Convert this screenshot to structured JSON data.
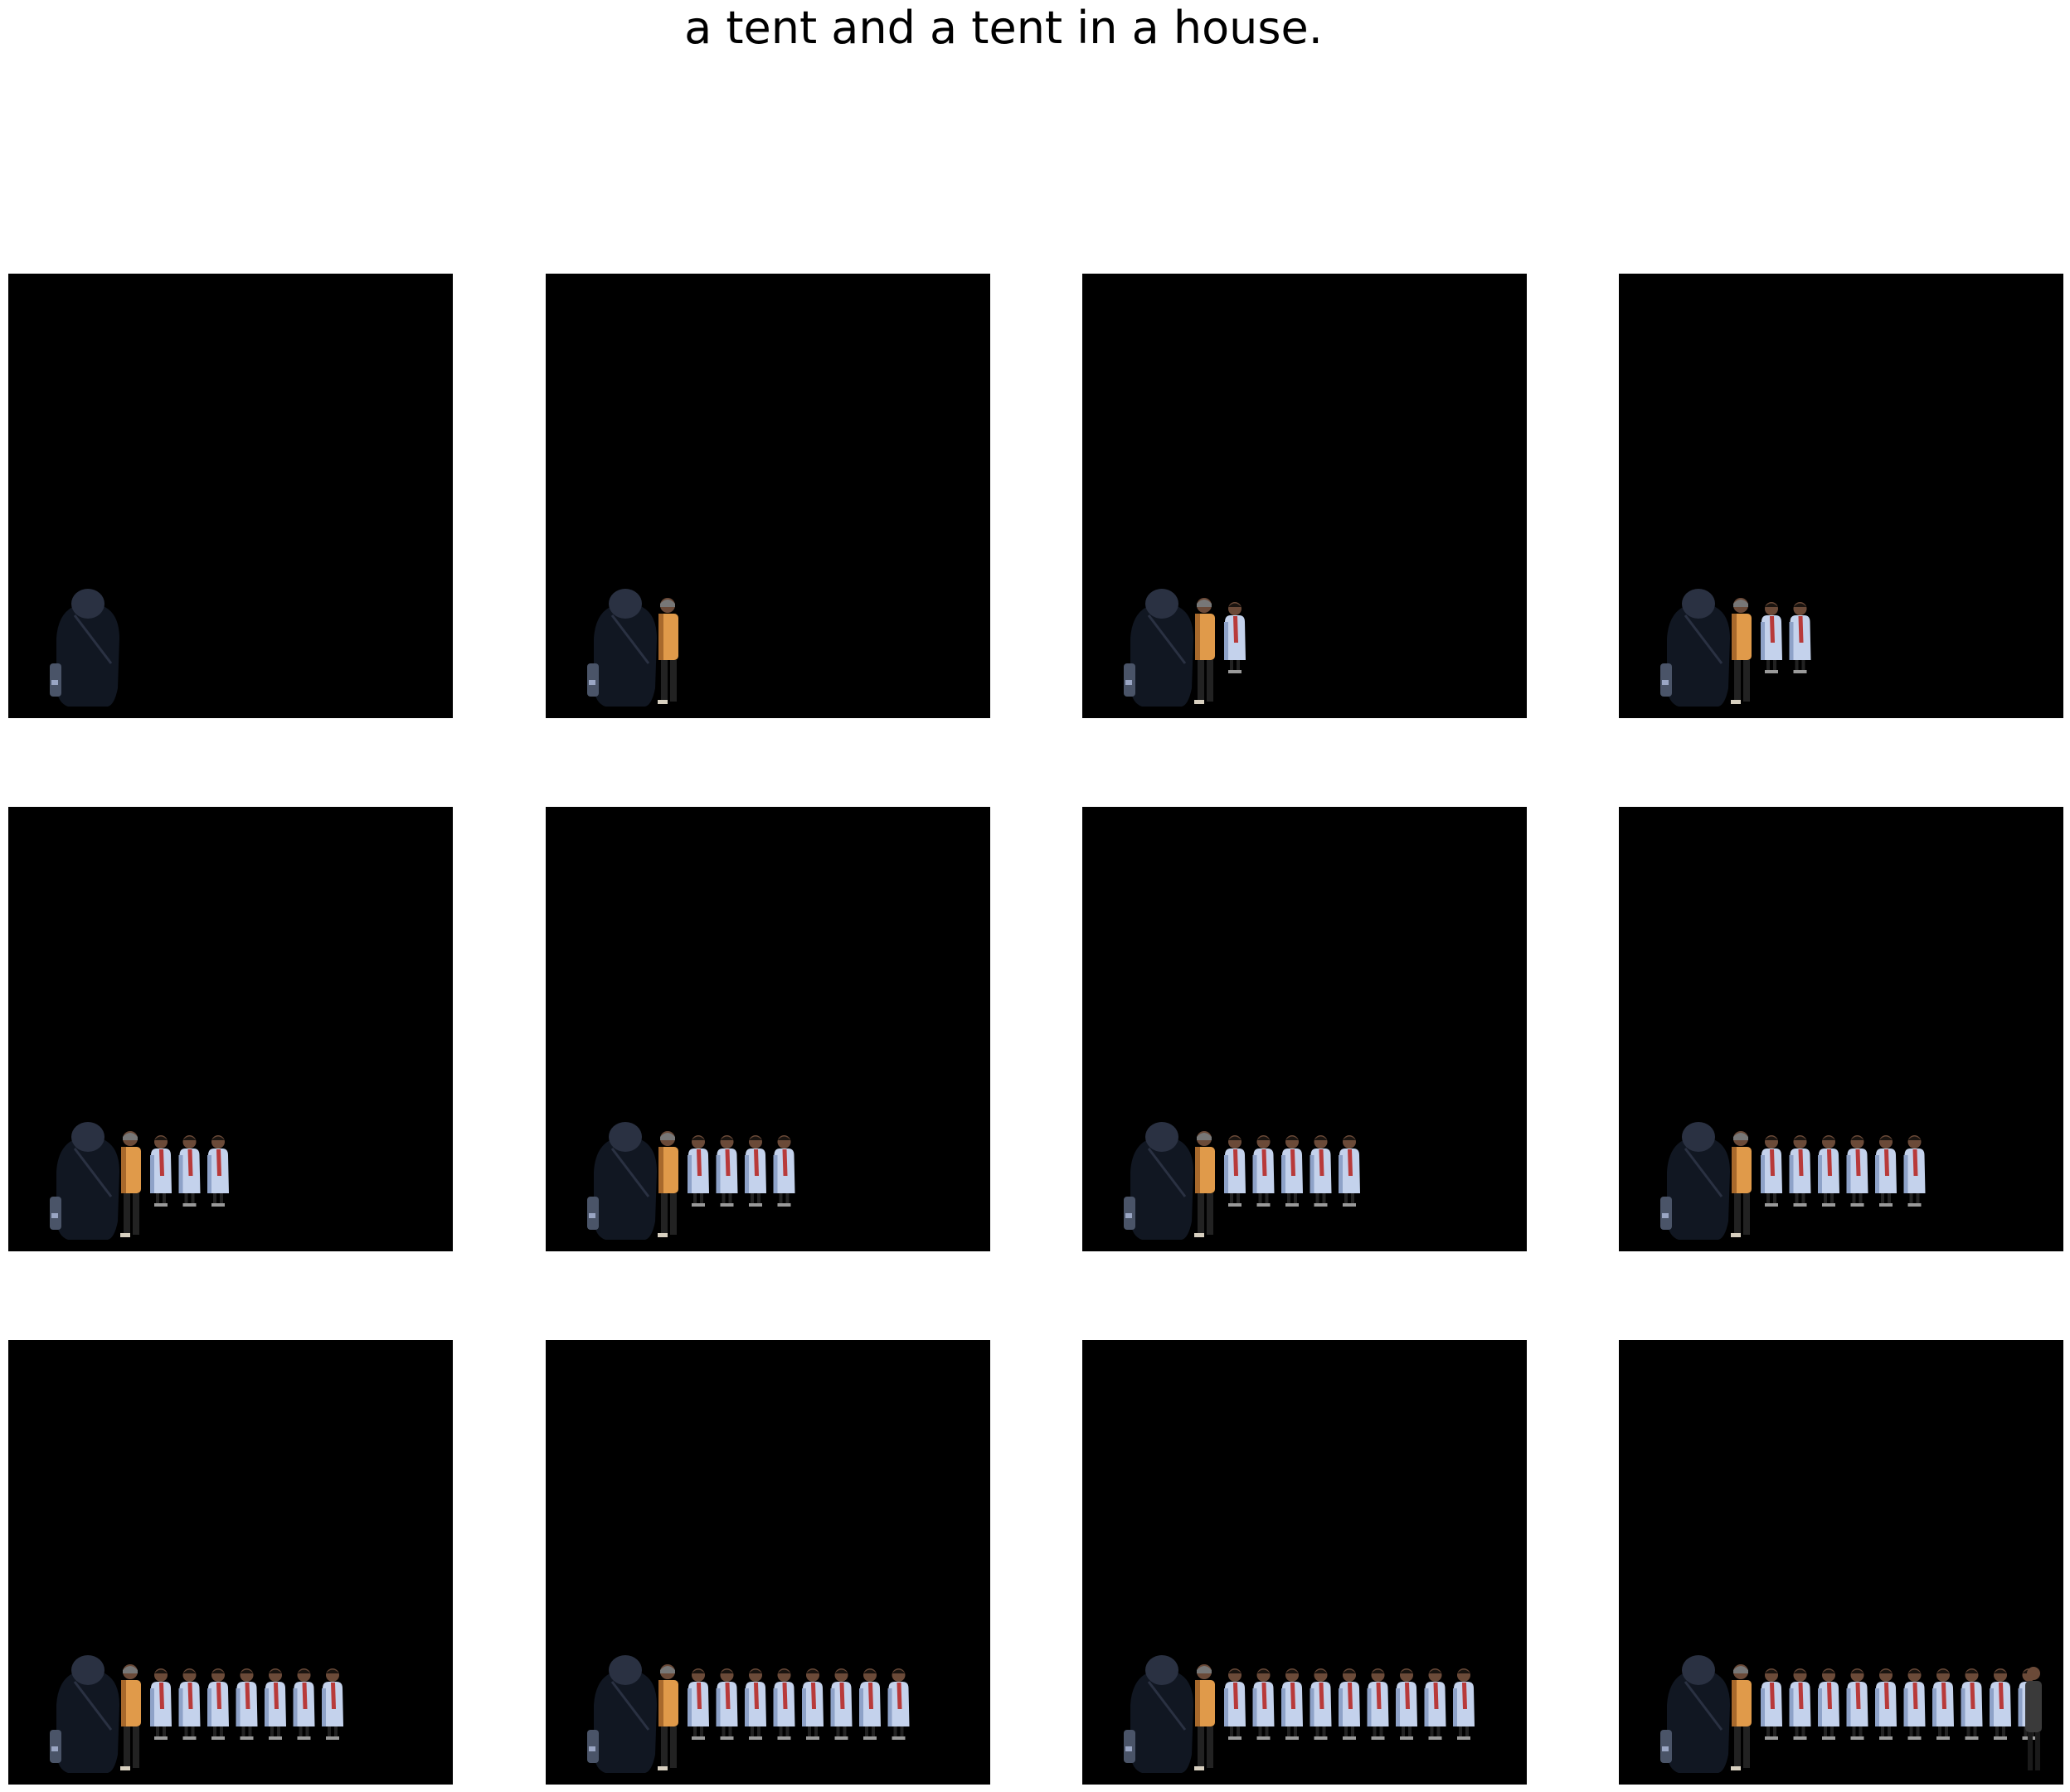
{
  "caption": "a tent and a tent in a house.",
  "panel_background": "#000000",
  "colors": {
    "dark_coat": "#111722",
    "dark_coat_highlight": "#2a3142",
    "orange_figure": "#e09a4a",
    "orange_shadow": "#a8692c",
    "white_coat": "#c4d2ec",
    "white_coat_shade": "#8ea2c8",
    "red_scarf": "#b83a3a",
    "skin": "#6b4a38",
    "hair": "#1a1410",
    "pants": "#222222",
    "last_figure": "#3a3a3a"
  },
  "panels": [
    {
      "index": 1,
      "dark_coat": 1,
      "orange": 0,
      "white_coat_figures": 0,
      "extra_dark_figure": 0
    },
    {
      "index": 2,
      "dark_coat": 1,
      "orange": 1,
      "white_coat_figures": 0,
      "extra_dark_figure": 0
    },
    {
      "index": 3,
      "dark_coat": 1,
      "orange": 1,
      "white_coat_figures": 1,
      "extra_dark_figure": 0
    },
    {
      "index": 4,
      "dark_coat": 1,
      "orange": 1,
      "white_coat_figures": 2,
      "extra_dark_figure": 0
    },
    {
      "index": 5,
      "dark_coat": 1,
      "orange": 1,
      "white_coat_figures": 3,
      "extra_dark_figure": 0
    },
    {
      "index": 6,
      "dark_coat": 1,
      "orange": 1,
      "white_coat_figures": 4,
      "extra_dark_figure": 0
    },
    {
      "index": 7,
      "dark_coat": 1,
      "orange": 1,
      "white_coat_figures": 5,
      "extra_dark_figure": 0
    },
    {
      "index": 8,
      "dark_coat": 1,
      "orange": 1,
      "white_coat_figures": 6,
      "extra_dark_figure": 0
    },
    {
      "index": 9,
      "dark_coat": 1,
      "orange": 1,
      "white_coat_figures": 7,
      "extra_dark_figure": 0
    },
    {
      "index": 10,
      "dark_coat": 1,
      "orange": 1,
      "white_coat_figures": 8,
      "extra_dark_figure": 0
    },
    {
      "index": 11,
      "dark_coat": 1,
      "orange": 1,
      "white_coat_figures": 9,
      "extra_dark_figure": 0
    },
    {
      "index": 12,
      "dark_coat": 1,
      "orange": 1,
      "white_coat_figures": 10,
      "extra_dark_figure": 1
    }
  ]
}
